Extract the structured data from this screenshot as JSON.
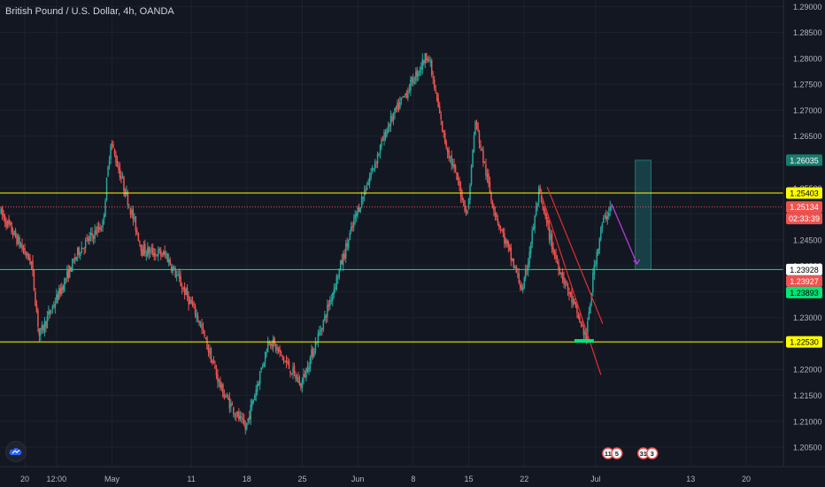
{
  "header": {
    "symbol_title": "British Pound / U.S. Dollar, 4h, OANDA"
  },
  "colors": {
    "background": "#131722",
    "bull": "#26a69a",
    "bear": "#ef5350",
    "grid": "#1e222d",
    "axis_text": "#b2b5be",
    "resistance_line": "#ffff00",
    "support_line": "#00e676",
    "projection_arrow": "#b73bd8",
    "target_box": "#1a4d52",
    "channel_line": "#e03030"
  },
  "chart_data": {
    "type": "candlestick",
    "title": "British Pound / U.S. Dollar, 4h, OANDA",
    "xlabel": "",
    "ylabel": "",
    "ylim": [
      1.2025,
      1.29
    ],
    "grid": false,
    "y_ticks": [
      "1.29000",
      "1.28500",
      "1.28000",
      "1.27500",
      "1.27000",
      "1.26500",
      "1.26000",
      "1.25500",
      "1.25000",
      "1.24500",
      "1.24000",
      "1.23500",
      "1.23000",
      "1.22500",
      "1.22000",
      "1.21500",
      "1.21000",
      "1.20500"
    ],
    "x_ticks": [
      "20",
      "12:00",
      "May",
      "11",
      "18",
      "25",
      "Jun",
      "8",
      "15",
      "22",
      "Jul",
      "13",
      "20"
    ],
    "price_path": [
      {
        "x": "Apr 17",
        "y": 1.2505
      },
      {
        "x": "Apr 21",
        "y": 1.2405
      },
      {
        "x": "Apr 22",
        "y": 1.2265
      },
      {
        "x": "Apr 27",
        "y": 1.243
      },
      {
        "x": "Apr 30",
        "y": 1.248
      },
      {
        "x": "May 1",
        "y": 1.264
      },
      {
        "x": "May 5",
        "y": 1.243
      },
      {
        "x": "May 8",
        "y": 1.242
      },
      {
        "x": "May 12",
        "y": 1.23
      },
      {
        "x": "May 15",
        "y": 1.216
      },
      {
        "x": "May 18",
        "y": 1.2085
      },
      {
        "x": "May 21",
        "y": 1.226
      },
      {
        "x": "May 25",
        "y": 1.217
      },
      {
        "x": "May 28",
        "y": 1.23
      },
      {
        "x": "Jun 1",
        "y": 1.25
      },
      {
        "x": "Jun 5",
        "y": 1.267
      },
      {
        "x": "Jun 10",
        "y": 1.281
      },
      {
        "x": "Jun 12",
        "y": 1.265
      },
      {
        "x": "Jun 15",
        "y": 1.25
      },
      {
        "x": "Jun 16",
        "y": 1.268
      },
      {
        "x": "Jun 18",
        "y": 1.253
      },
      {
        "x": "Jun 19",
        "y": 1.248
      },
      {
        "x": "Jun 22",
        "y": 1.235
      },
      {
        "x": "Jun 24",
        "y": 1.254
      },
      {
        "x": "Jun 26",
        "y": 1.242
      },
      {
        "x": "Jun 29",
        "y": 1.23
      },
      {
        "x": "Jun 30",
        "y": 1.226
      },
      {
        "x": "Jul 1",
        "y": 1.24
      },
      {
        "x": "Jul 2",
        "y": 1.248
      },
      {
        "x": "Jul 3",
        "y": 1.2513
      }
    ],
    "horizontal_levels": [
      {
        "price": 1.25403,
        "color": "#ffff00"
      },
      {
        "price": 1.23928,
        "color": "#00e676"
      },
      {
        "price": 1.2253,
        "color": "#ffff00"
      },
      {
        "price": 1.25134,
        "color": "#ef5350",
        "style": "dotted"
      }
    ],
    "projection": {
      "from": {
        "x": "Jul 3",
        "y": 1.252
      },
      "to": {
        "x": "Jul 6",
        "y": 1.24
      }
    },
    "target_zone": {
      "x_start": "Jul 6",
      "x_end": "Jul 8",
      "y_top": 1.26035,
      "y_bottom": 1.23928
    },
    "low_marker": {
      "x_start": "Jun 29",
      "x_end": "Jul 1",
      "y": 1.2255
    },
    "channel": {
      "start": {
        "x": "Jun 24",
        "y": 1.2545
      },
      "end": {
        "x": "Jul 1",
        "y": 1.222
      }
    }
  },
  "price_labels": [
    {
      "text": "1.26035",
      "bg": "#1a7a6e",
      "fg": "#ffffff",
      "price": 1.26035
    },
    {
      "text": "1.25403",
      "bg": "#ffff00",
      "fg": "#000000",
      "price": 1.25403
    },
    {
      "text": "1.25134",
      "bg": "#ef5350",
      "fg": "#ffffff",
      "price": 1.25134
    },
    {
      "text": "02:33:39",
      "bg": "#ef5350",
      "fg": "#ffffff",
      "price": 1.25
    },
    {
      "text": "1.23928",
      "bg": "#ffffff",
      "fg": "#000000",
      "price": 1.23928
    },
    {
      "text": "1.23927",
      "bg": "#ef5350",
      "fg": "#ffffff",
      "price": 1.23927
    },
    {
      "text": "1.23893",
      "bg": "#00e676",
      "fg": "#000000",
      "price": 1.23893
    },
    {
      "text": "1.22530",
      "bg": "#ffff00",
      "fg": "#000000",
      "price": 1.2253
    }
  ],
  "event_badges": [
    {
      "x": "Jul 1",
      "label": "11"
    },
    {
      "x": "Jul 1",
      "label": "5"
    },
    {
      "x": "Jul 3",
      "label": "31"
    },
    {
      "x": "Jul 3",
      "label": "3"
    }
  ],
  "logo": {
    "icon": "tradingview-cloud-icon"
  }
}
